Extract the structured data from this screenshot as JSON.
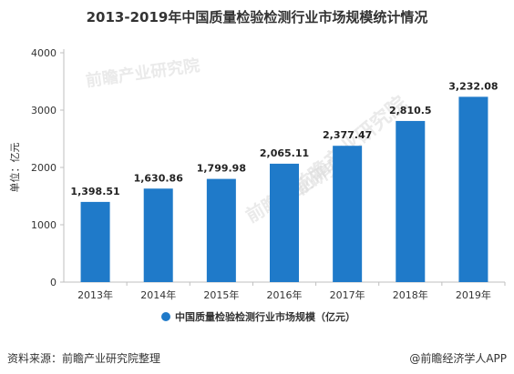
{
  "title": "2013-2019年中国质量检验检测行业市场规模统计情况",
  "footer": {
    "source": "资料来源：前瞻产业研究院整理",
    "brand": "@前瞻经济学人APP"
  },
  "watermark": {
    "text": "前瞻产业研究院"
  },
  "colors": {
    "bar": "#1f7ac9",
    "axis": "#bfbfbf",
    "text": "#333333"
  },
  "chart_data": {
    "type": "bar",
    "title": "2013-2019年中国质量检验检测行业市场规模统计情况",
    "xlabel": "",
    "ylabel": "单位：亿元",
    "ylim": [
      0,
      4000
    ],
    "yticks": [
      0,
      1000,
      2000,
      3000,
      4000
    ],
    "categories": [
      "2013年",
      "2014年",
      "2015年",
      "2016年",
      "2017年",
      "2018年",
      "2019年"
    ],
    "values": [
      1398.51,
      1630.86,
      1799.98,
      2065.11,
      2377.47,
      2810.5,
      3232.08
    ],
    "value_labels": [
      "1,398.51",
      "1,630.86",
      "1,799.98",
      "2,065.11",
      "2,377.47",
      "2,810.5",
      "3,232.08"
    ],
    "series": [
      {
        "name": "中国质量检验检测行业市场规模（亿元）",
        "values": [
          1398.51,
          1630.86,
          1799.98,
          2065.11,
          2377.47,
          2810.5,
          3232.08
        ]
      }
    ],
    "legend_position": "bottom-center",
    "grid": false
  }
}
